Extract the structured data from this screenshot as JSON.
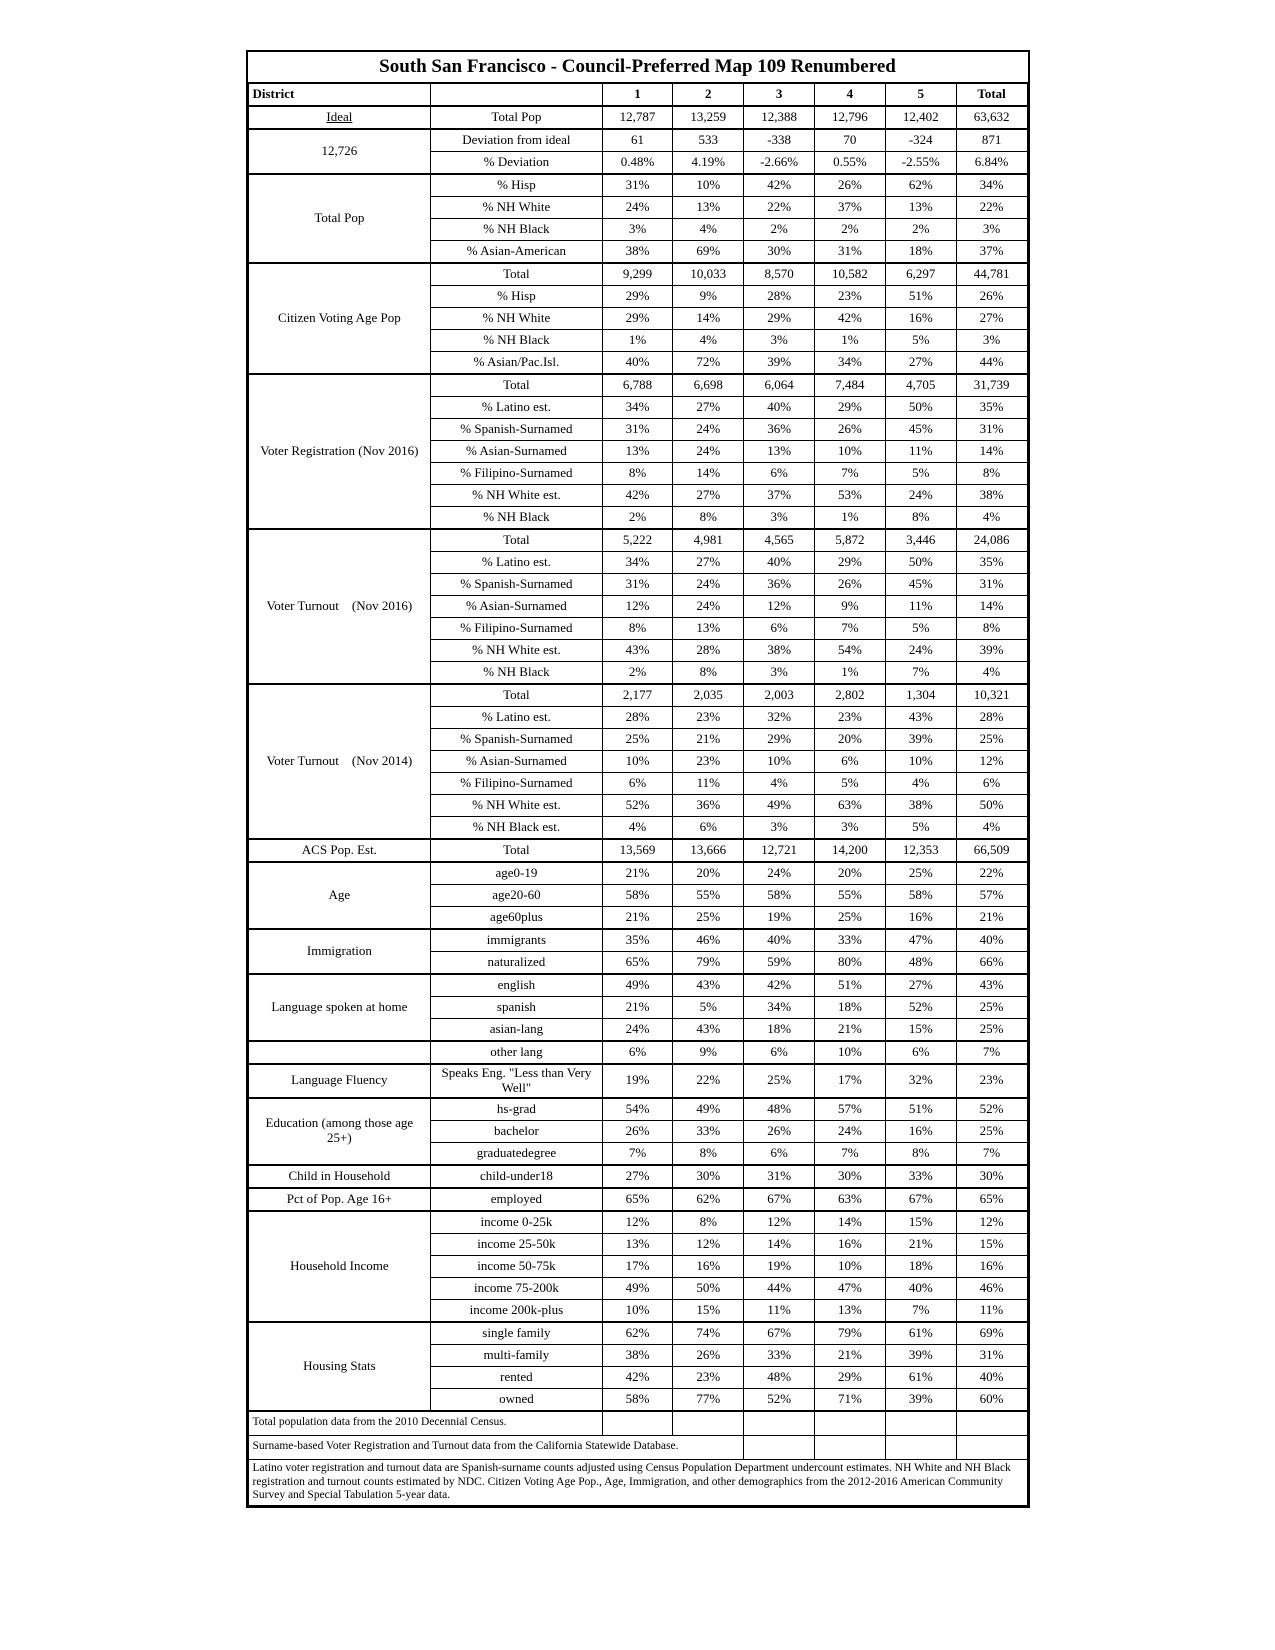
{
  "title": "South San Francisco - Council-Preferred Map 109 Renumbered",
  "header": {
    "district": "District",
    "c1": "1",
    "c2": "2",
    "c3": "3",
    "c4": "4",
    "c5": "5",
    "total": "Total"
  },
  "groups": [
    {
      "label": "<span class='underline'>Ideal</span>",
      "rows": [
        {
          "m": "Total Pop",
          "v": [
            "12,787",
            "13,259",
            "12,388",
            "12,796",
            "12,402",
            "63,632"
          ]
        }
      ]
    },
    {
      "label": "12,726",
      "rows": [
        {
          "m": "Deviation from ideal",
          "v": [
            "61",
            "533",
            "-338",
            "70",
            "-324",
            "871"
          ]
        },
        {
          "m": "% Deviation",
          "v": [
            "0.48%",
            "4.19%",
            "-2.66%",
            "0.55%",
            "-2.55%",
            "6.84%"
          ]
        }
      ]
    },
    {
      "label": "Total Pop",
      "rows": [
        {
          "m": "% Hisp",
          "v": [
            "31%",
            "10%",
            "42%",
            "26%",
            "62%",
            "34%"
          ]
        },
        {
          "m": "% NH White",
          "v": [
            "24%",
            "13%",
            "22%",
            "37%",
            "13%",
            "22%"
          ]
        },
        {
          "m": "% NH Black",
          "v": [
            "3%",
            "4%",
            "2%",
            "2%",
            "2%",
            "3%"
          ]
        },
        {
          "m": "% Asian-American",
          "v": [
            "38%",
            "69%",
            "30%",
            "31%",
            "18%",
            "37%"
          ]
        }
      ]
    },
    {
      "label": "Citizen Voting Age Pop",
      "rows": [
        {
          "m": "Total",
          "v": [
            "9,299",
            "10,033",
            "8,570",
            "10,582",
            "6,297",
            "44,781"
          ]
        },
        {
          "m": "% Hisp",
          "v": [
            "29%",
            "9%",
            "28%",
            "23%",
            "51%",
            "26%"
          ]
        },
        {
          "m": "% NH White",
          "v": [
            "29%",
            "14%",
            "29%",
            "42%",
            "16%",
            "27%"
          ]
        },
        {
          "m": "% NH Black",
          "v": [
            "1%",
            "4%",
            "3%",
            "1%",
            "5%",
            "3%"
          ]
        },
        {
          "m": "% Asian/Pac.Isl.",
          "v": [
            "40%",
            "72%",
            "39%",
            "34%",
            "27%",
            "44%"
          ]
        }
      ]
    },
    {
      "label": "Voter Registration (Nov 2016)",
      "rows": [
        {
          "m": "Total",
          "v": [
            "6,788",
            "6,698",
            "6,064",
            "7,484",
            "4,705",
            "31,739"
          ]
        },
        {
          "m": "% Latino est.",
          "v": [
            "34%",
            "27%",
            "40%",
            "29%",
            "50%",
            "35%"
          ]
        },
        {
          "m": "% Spanish-Surnamed",
          "v": [
            "31%",
            "24%",
            "36%",
            "26%",
            "45%",
            "31%"
          ]
        },
        {
          "m": "% Asian-Surnamed",
          "v": [
            "13%",
            "24%",
            "13%",
            "10%",
            "11%",
            "14%"
          ]
        },
        {
          "m": "% Filipino-Surnamed",
          "v": [
            "8%",
            "14%",
            "6%",
            "7%",
            "5%",
            "8%"
          ]
        },
        {
          "m": "% NH White est.",
          "v": [
            "42%",
            "27%",
            "37%",
            "53%",
            "24%",
            "38%"
          ]
        },
        {
          "m": "% NH Black",
          "v": [
            "2%",
            "8%",
            "3%",
            "1%",
            "8%",
            "4%"
          ]
        }
      ]
    },
    {
      "label": "Voter Turnout &nbsp;&nbsp;&nbsp;(Nov 2016)",
      "rows": [
        {
          "m": "Total",
          "v": [
            "5,222",
            "4,981",
            "4,565",
            "5,872",
            "3,446",
            "24,086"
          ]
        },
        {
          "m": "% Latino est.",
          "v": [
            "34%",
            "27%",
            "40%",
            "29%",
            "50%",
            "35%"
          ]
        },
        {
          "m": "% Spanish-Surnamed",
          "v": [
            "31%",
            "24%",
            "36%",
            "26%",
            "45%",
            "31%"
          ]
        },
        {
          "m": "% Asian-Surnamed",
          "v": [
            "12%",
            "24%",
            "12%",
            "9%",
            "11%",
            "14%"
          ]
        },
        {
          "m": "% Filipino-Surnamed",
          "v": [
            "8%",
            "13%",
            "6%",
            "7%",
            "5%",
            "8%"
          ]
        },
        {
          "m": "% NH White est.",
          "v": [
            "43%",
            "28%",
            "38%",
            "54%",
            "24%",
            "39%"
          ]
        },
        {
          "m": "% NH Black",
          "v": [
            "2%",
            "8%",
            "3%",
            "1%",
            "7%",
            "4%"
          ]
        }
      ]
    },
    {
      "label": "Voter Turnout &nbsp;&nbsp;&nbsp;(Nov 2014)",
      "rows": [
        {
          "m": "Total",
          "v": [
            "2,177",
            "2,035",
            "2,003",
            "2,802",
            "1,304",
            "10,321"
          ]
        },
        {
          "m": "% Latino est.",
          "v": [
            "28%",
            "23%",
            "32%",
            "23%",
            "43%",
            "28%"
          ]
        },
        {
          "m": "% Spanish-Surnamed",
          "v": [
            "25%",
            "21%",
            "29%",
            "20%",
            "39%",
            "25%"
          ]
        },
        {
          "m": "% Asian-Surnamed",
          "v": [
            "10%",
            "23%",
            "10%",
            "6%",
            "10%",
            "12%"
          ]
        },
        {
          "m": "% Filipino-Surnamed",
          "v": [
            "6%",
            "11%",
            "4%",
            "5%",
            "4%",
            "6%"
          ]
        },
        {
          "m": "% NH White est.",
          "v": [
            "52%",
            "36%",
            "49%",
            "63%",
            "38%",
            "50%"
          ]
        },
        {
          "m": "% NH Black est.",
          "v": [
            "4%",
            "6%",
            "3%",
            "3%",
            "5%",
            "4%"
          ]
        }
      ]
    },
    {
      "label": "ACS Pop. Est.",
      "rows": [
        {
          "m": "Total",
          "v": [
            "13,569",
            "13,666",
            "12,721",
            "14,200",
            "12,353",
            "66,509"
          ]
        }
      ]
    },
    {
      "label": "Age",
      "rows": [
        {
          "m": "age0-19",
          "v": [
            "21%",
            "20%",
            "24%",
            "20%",
            "25%",
            "22%"
          ]
        },
        {
          "m": "age20-60",
          "v": [
            "58%",
            "55%",
            "58%",
            "55%",
            "58%",
            "57%"
          ]
        },
        {
          "m": "age60plus",
          "v": [
            "21%",
            "25%",
            "19%",
            "25%",
            "16%",
            "21%"
          ]
        }
      ]
    },
    {
      "label": "Immigration",
      "rows": [
        {
          "m": "immigrants",
          "v": [
            "35%",
            "46%",
            "40%",
            "33%",
            "47%",
            "40%"
          ]
        },
        {
          "m": "naturalized",
          "v": [
            "65%",
            "79%",
            "59%",
            "80%",
            "48%",
            "66%"
          ]
        }
      ]
    },
    {
      "label": "Language spoken at home",
      "rows": [
        {
          "m": "english",
          "v": [
            "49%",
            "43%",
            "42%",
            "51%",
            "27%",
            "43%"
          ]
        },
        {
          "m": "spanish",
          "v": [
            "21%",
            "5%",
            "34%",
            "18%",
            "52%",
            "25%"
          ]
        },
        {
          "m": "asian-lang",
          "v": [
            "24%",
            "43%",
            "18%",
            "21%",
            "15%",
            "25%"
          ]
        }
      ]
    },
    {
      "label": "",
      "rows": [
        {
          "m": "other lang",
          "v": [
            "6%",
            "9%",
            "6%",
            "10%",
            "6%",
            "7%"
          ]
        }
      ]
    },
    {
      "label": "Language Fluency",
      "rows": [
        {
          "m": "Speaks Eng. \"Less than Very Well\"",
          "v": [
            "19%",
            "22%",
            "25%",
            "17%",
            "32%",
            "23%"
          ]
        }
      ]
    },
    {
      "label": "Education (among those age 25+)",
      "rows": [
        {
          "m": "hs-grad",
          "v": [
            "54%",
            "49%",
            "48%",
            "57%",
            "51%",
            "52%"
          ]
        },
        {
          "m": "bachelor",
          "v": [
            "26%",
            "33%",
            "26%",
            "24%",
            "16%",
            "25%"
          ]
        },
        {
          "m": "graduatedegree",
          "v": [
            "7%",
            "8%",
            "6%",
            "7%",
            "8%",
            "7%"
          ]
        }
      ]
    },
    {
      "label": "Child in Household",
      "rows": [
        {
          "m": "child-under18",
          "v": [
            "27%",
            "30%",
            "31%",
            "30%",
            "33%",
            "30%"
          ]
        }
      ]
    },
    {
      "label": "Pct of Pop. Age 16+",
      "rows": [
        {
          "m": "employed",
          "v": [
            "65%",
            "62%",
            "67%",
            "63%",
            "67%",
            "65%"
          ]
        }
      ]
    },
    {
      "label": "Household Income",
      "rows": [
        {
          "m": "income 0-25k",
          "v": [
            "12%",
            "8%",
            "12%",
            "14%",
            "15%",
            "12%"
          ]
        },
        {
          "m": "income 25-50k",
          "v": [
            "13%",
            "12%",
            "14%",
            "16%",
            "21%",
            "15%"
          ]
        },
        {
          "m": "income 50-75k",
          "v": [
            "17%",
            "16%",
            "19%",
            "10%",
            "18%",
            "16%"
          ]
        },
        {
          "m": "income 75-200k",
          "v": [
            "49%",
            "50%",
            "44%",
            "47%",
            "40%",
            "46%"
          ]
        },
        {
          "m": "income 200k-plus",
          "v": [
            "10%",
            "15%",
            "11%",
            "13%",
            "7%",
            "11%"
          ]
        }
      ]
    },
    {
      "label": "Housing Stats",
      "rows": [
        {
          "m": "single family",
          "v": [
            "62%",
            "74%",
            "67%",
            "79%",
            "61%",
            "69%"
          ]
        },
        {
          "m": "multi-family",
          "v": [
            "38%",
            "26%",
            "33%",
            "21%",
            "39%",
            "31%"
          ]
        },
        {
          "m": "rented",
          "v": [
            "42%",
            "23%",
            "48%",
            "29%",
            "61%",
            "40%"
          ]
        },
        {
          "m": "owned",
          "v": [
            "58%",
            "77%",
            "52%",
            "71%",
            "39%",
            "60%"
          ]
        }
      ]
    }
  ],
  "footnotes": [
    "Total population data from the 2010 Decennial Census.",
    "Surname-based Voter Registration and Turnout data from the California Statewide Database.",
    "Latino voter registration and turnout data are Spanish-surname counts adjusted using Census Population Department undercount estimates. NH White and NH Black registration and turnout counts estimated by NDC. Citizen Voting Age Pop., Age, Immigration, and other demographics from the 2012-2016 American Community Survey and Special Tabulation 5-year data."
  ]
}
